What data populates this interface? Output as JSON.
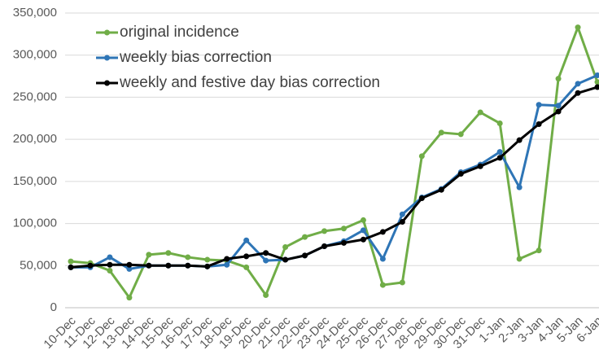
{
  "chart_data": {
    "type": "line",
    "categories": [
      "10-Dec",
      "11-Dec",
      "12-Dec",
      "13-Dec",
      "14-Dec",
      "15-Dec",
      "16-Dec",
      "17-Dec",
      "18-Dec",
      "19-Dec",
      "20-Dec",
      "21-Dec",
      "22-Dec",
      "23-Dec",
      "24-Dec",
      "25-Dec",
      "26-Dec",
      "27-Dec",
      "28-Dec",
      "29-Dec",
      "30-Dec",
      "31-Dec",
      "1-Jan",
      "2-Jan",
      "3-Jan",
      "4-Jan",
      "5-Jan",
      "6-Jan"
    ],
    "series": [
      {
        "name": "original incidence",
        "color": "#70ad47",
        "values": [
          55000,
          53000,
          44000,
          12000,
          63000,
          65000,
          60000,
          57000,
          56000,
          48000,
          15000,
          72000,
          84000,
          91000,
          94000,
          104000,
          27000,
          30000,
          180000,
          208000,
          206000,
          232000,
          219000,
          58000,
          68000,
          272000,
          333000,
          268000
        ]
      },
      {
        "name": "weekly bias correction",
        "color": "#2e75b6",
        "values": [
          48000,
          48000,
          60000,
          46000,
          50000,
          50000,
          50000,
          49000,
          51000,
          80000,
          56000,
          57000,
          62000,
          73000,
          79000,
          92000,
          58000,
          111000,
          131000,
          141000,
          161000,
          170000,
          185000,
          143000,
          241000,
          240000,
          266000,
          276000
        ]
      },
      {
        "name": "weekly and festive day bias correction",
        "color": "#000000",
        "values": [
          48000,
          50000,
          51000,
          51000,
          50000,
          50000,
          50000,
          49000,
          58000,
          61000,
          65000,
          57000,
          62000,
          73000,
          77000,
          81000,
          90000,
          102000,
          130000,
          140000,
          159000,
          168000,
          178000,
          199000,
          218000,
          233000,
          255000,
          262000
        ]
      }
    ],
    "ylim": [
      0,
      350000
    ],
    "yticks": [
      0,
      {
        "value": 50000,
        "label": "50,000"
      },
      {
        "value": 100000,
        "label": "100,000"
      },
      {
        "value": 150000,
        "label": "150,000"
      },
      {
        "value": 200000,
        "label": "200,000"
      },
      {
        "value": 250000,
        "label": "250,000"
      },
      {
        "value": 300000,
        "label": "300,000"
      },
      {
        "value": 350000,
        "label": "350,000"
      }
    ],
    "grid": true,
    "legend": "top-left"
  }
}
